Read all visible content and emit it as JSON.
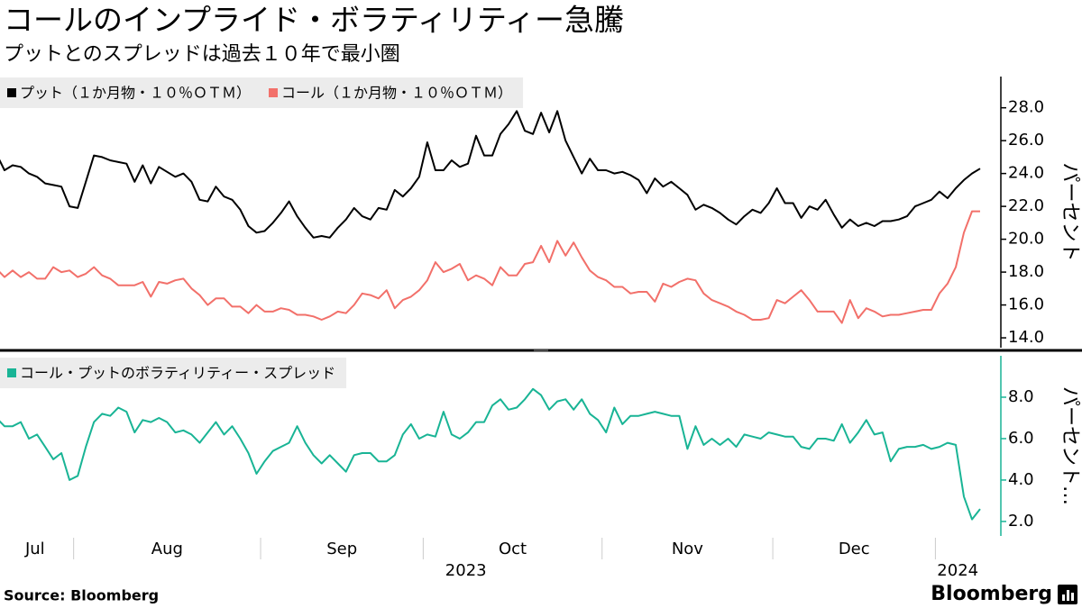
{
  "title": "コールのインプライド・ボラティリティー急騰",
  "subtitle": "プットとのスプレッドは過去１０年で最小圏",
  "source": "Source:  Bloomberg",
  "logo": "Bloomberg",
  "chart_data": [
    {
      "type": "line",
      "series": [
        {
          "name": "プット（１か月物・１０％ＯＴＭ）",
          "color": "#000000",
          "values": [
            25.2,
            24.2,
            24.5,
            24.4,
            24.0,
            23.8,
            23.4,
            23.3,
            23.2,
            22.0,
            21.9,
            23.5,
            25.1,
            25.0,
            24.8,
            24.7,
            24.6,
            23.5,
            24.5,
            23.4,
            24.4,
            24.1,
            23.8,
            24.0,
            23.5,
            22.4,
            22.3,
            23.2,
            22.6,
            22.4,
            21.8,
            20.8,
            20.4,
            20.5,
            21.0,
            21.6,
            22.3,
            21.4,
            20.7,
            20.1,
            20.2,
            20.1,
            20.7,
            21.2,
            21.9,
            21.4,
            21.2,
            21.9,
            21.8,
            23.0,
            22.6,
            23.1,
            23.8,
            25.9,
            24.2,
            24.2,
            24.8,
            24.4,
            24.6,
            26.3,
            25.1,
            25.1,
            26.4,
            27.0,
            27.8,
            26.6,
            26.4,
            27.7,
            26.5,
            27.8,
            26.0,
            25.0,
            24.0,
            24.9,
            24.2,
            24.2,
            24.0,
            24.1,
            23.9,
            23.6,
            22.8,
            23.7,
            23.2,
            23.5,
            23.1,
            22.7,
            21.8,
            22.1,
            21.9,
            21.6,
            21.2,
            20.9,
            21.4,
            21.8,
            21.6,
            22.2,
            23.1,
            22.2,
            22.2,
            21.3,
            22.0,
            21.8,
            22.4,
            21.5,
            20.7,
            21.2,
            20.8,
            21.0,
            20.8,
            21.1,
            21.1,
            21.2,
            21.4,
            22.0,
            22.2,
            22.4,
            22.9,
            22.5,
            23.1,
            23.6,
            24.0,
            24.3
          ]
        },
        {
          "name": "コール（１か月物・１０％ＯＴＭ）",
          "color": "#f2706a",
          "values": [
            18.2,
            17.7,
            18.1,
            17.7,
            18.0,
            17.6,
            17.6,
            18.3,
            18.0,
            18.1,
            17.7,
            17.9,
            18.3,
            17.8,
            17.6,
            17.2,
            17.2,
            17.2,
            17.4,
            16.5,
            17.4,
            17.3,
            17.5,
            17.6,
            17.0,
            16.6,
            16.0,
            16.4,
            16.4,
            15.9,
            15.9,
            15.5,
            16.0,
            15.6,
            15.6,
            15.8,
            15.7,
            15.4,
            15.4,
            15.3,
            15.1,
            15.3,
            15.6,
            15.5,
            16.0,
            16.7,
            16.6,
            16.4,
            16.9,
            15.8,
            16.3,
            16.5,
            16.9,
            17.5,
            18.6,
            18.0,
            18.2,
            18.5,
            17.5,
            17.8,
            17.6,
            17.2,
            18.3,
            17.8,
            17.8,
            18.5,
            18.6,
            19.6,
            18.6,
            19.9,
            19.0,
            19.8,
            18.9,
            18.1,
            17.7,
            17.5,
            17.1,
            17.1,
            16.7,
            16.8,
            16.8,
            16.2,
            17.3,
            17.1,
            17.4,
            17.6,
            17.5,
            16.7,
            16.3,
            16.1,
            15.9,
            15.6,
            15.4,
            15.1,
            15.1,
            15.2,
            16.3,
            16.1,
            16.5,
            16.9,
            16.3,
            15.6,
            15.6,
            15.6,
            14.9,
            16.3,
            15.2,
            15.8,
            15.6,
            15.3,
            15.4,
            15.4,
            15.5,
            15.6,
            15.7,
            15.7,
            16.7,
            17.3,
            18.3,
            20.4,
            21.7,
            21.7
          ]
        }
      ],
      "ylim": [
        13.4,
        29.9
      ],
      "yticks": [
        {
          "value": 14,
          "label": "14.0"
        },
        {
          "value": 16,
          "label": "16.0"
        },
        {
          "value": 18,
          "label": "18.0"
        },
        {
          "value": 20,
          "label": "20.0"
        },
        {
          "value": 22,
          "label": "22.0"
        },
        {
          "value": 24,
          "label": "24.0"
        },
        {
          "value": 26,
          "label": "26.0"
        },
        {
          "value": 28,
          "label": "28.0"
        }
      ],
      "ylabel": "パーセント",
      "axis_color": "#000000"
    },
    {
      "type": "line",
      "series": [
        {
          "name": "コール・プットのボラティリティー・スプレッド",
          "color": "#19b495",
          "values": [
            7.0,
            6.6,
            6.6,
            6.8,
            6.0,
            6.2,
            5.6,
            5.0,
            5.3,
            4.0,
            4.2,
            5.6,
            6.8,
            7.2,
            7.1,
            7.5,
            7.3,
            6.3,
            6.9,
            6.8,
            7.0,
            6.8,
            6.3,
            6.4,
            6.2,
            5.8,
            6.3,
            6.8,
            6.2,
            6.6,
            6.0,
            5.3,
            4.3,
            4.9,
            5.4,
            5.6,
            5.8,
            6.6,
            5.8,
            5.2,
            4.8,
            5.2,
            4.8,
            4.4,
            5.2,
            5.3,
            5.3,
            4.9,
            4.9,
            5.2,
            6.2,
            6.7,
            6.0,
            6.2,
            6.1,
            7.3,
            6.2,
            6.0,
            6.3,
            6.8,
            6.8,
            7.6,
            7.9,
            7.4,
            7.5,
            7.9,
            8.4,
            8.1,
            7.4,
            7.8,
            7.9,
            7.4,
            7.9,
            7.2,
            6.9,
            6.3,
            7.5,
            6.7,
            7.1,
            7.1,
            7.2,
            7.3,
            7.2,
            7.1,
            7.1,
            5.5,
            6.6,
            5.7,
            6.0,
            5.7,
            6.0,
            5.6,
            6.2,
            6.1,
            6.0,
            6.3,
            6.2,
            6.1,
            6.1,
            5.6,
            5.5,
            6.0,
            6.0,
            5.9,
            6.7,
            5.8,
            6.3,
            6.9,
            6.2,
            6.3,
            4.9,
            5.5,
            5.6,
            5.6,
            5.7,
            5.5,
            5.6,
            5.8,
            5.7,
            3.2,
            2.1,
            2.6
          ]
        }
      ],
      "ylim": [
        1.3,
        10
      ],
      "yticks": [
        {
          "value": 2,
          "label": "2.0"
        },
        {
          "value": 4,
          "label": "4.0"
        },
        {
          "value": 6,
          "label": "6.0"
        },
        {
          "value": 8,
          "label": "8.0"
        }
      ],
      "ylabel": "パーセント…",
      "axis_color": "#19b495",
      "categories": [
        "Jul",
        null,
        null,
        null,
        null,
        null,
        null,
        null,
        null,
        null,
        "Aug",
        null,
        null,
        null,
        null,
        null,
        null,
        null,
        null,
        null,
        null,
        null,
        null,
        null,
        null,
        null,
        null,
        null,
        null,
        null,
        null,
        null,
        null,
        "Sep",
        null,
        null,
        null,
        null,
        null,
        null,
        null,
        null,
        null,
        null,
        null,
        null,
        null,
        null,
        null,
        null,
        null,
        null,
        null,
        "Oct",
        null,
        null,
        null,
        null,
        null,
        null,
        null,
        null,
        null,
        null,
        null,
        null,
        null,
        null,
        null,
        null,
        null,
        null,
        null,
        null,
        null,
        "Nov",
        null,
        null,
        null,
        null,
        null,
        null,
        null,
        null,
        null,
        null,
        null,
        null,
        null,
        null,
        null,
        null,
        null,
        null,
        null,
        null,
        "Dec",
        null,
        null,
        null,
        null,
        null,
        null,
        null,
        null,
        null,
        null,
        null,
        null,
        null,
        null,
        null,
        null,
        null,
        null,
        null,
        "2024",
        null,
        null,
        null,
        null,
        null
      ],
      "year": "2023"
    }
  ]
}
